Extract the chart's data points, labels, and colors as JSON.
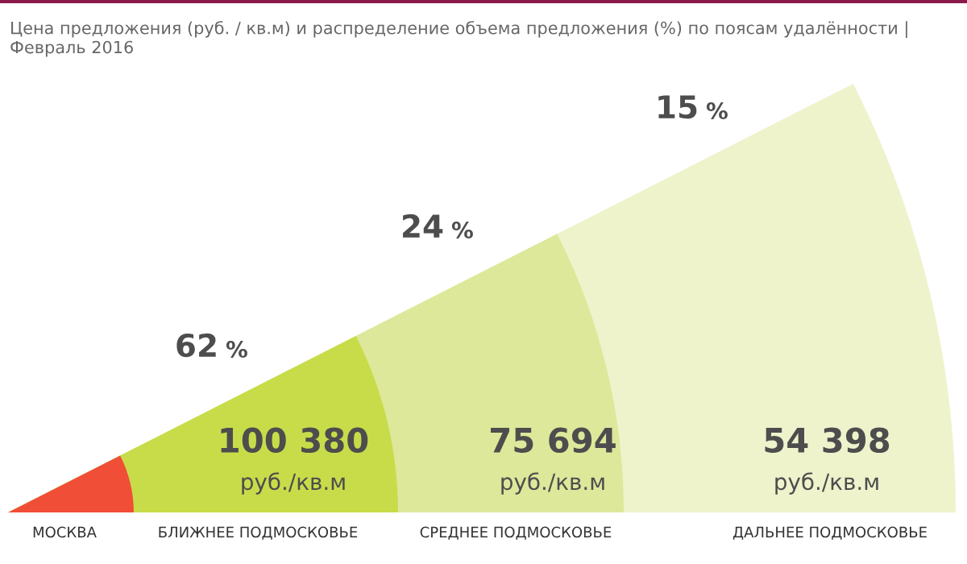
{
  "chart_data": {
    "type": "other",
    "title": "Цена предложения (руб. / кв.м) и распределение объема предложения (%) по поясам удалённости | Февраль 2016",
    "categories": [
      "МОСКВА",
      "БЛИЖНЕЕ ПОДМОСКОВЬЕ",
      "СРЕДНЕЕ ПОДМОСКОВЬЕ",
      "ДАЛЬНЕЕ ПОДМОСКОВЬЕ"
    ],
    "data_labels": true,
    "series": [
      {
        "colors": [
          "#f04e37",
          "#c8dc4a",
          "#dde89a",
          "#eef3cc"
        ],
        "values": [
          null,
          100380,
          75694,
          54398
        ]
      },
      {
        "values": [
          null,
          62,
          24,
          15
        ]
      }
    ],
    "annotations": [
      "руб./кв.м",
      "руб./кв.м",
      "руб./кв.м",
      "%",
      "%",
      "%"
    ]
  }
}
